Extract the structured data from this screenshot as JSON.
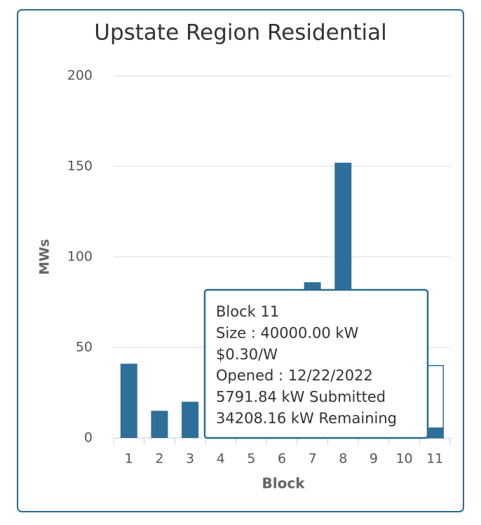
{
  "chart_data": {
    "type": "bar",
    "title": "Upstate Region Residential",
    "x_label": "Block",
    "y_label": "MWs",
    "categories": [
      "1",
      "2",
      "3",
      "4",
      "5",
      "6",
      "7",
      "8",
      "9",
      "10",
      "11"
    ],
    "series": [
      {
        "color": "#2e6f9a",
        "style": "outline",
        "values": [
          null,
          null,
          null,
          null,
          null,
          null,
          null,
          null,
          null,
          null,
          40
        ]
      },
      {
        "color": "#2e6f9a",
        "style": "filled",
        "values": [
          41,
          15,
          20,
          null,
          null,
          null,
          86,
          152,
          null,
          null,
          5.79184
        ]
      }
    ],
    "ylim": [
      0,
      200
    ],
    "yticks": [
      0,
      50,
      100,
      150,
      200
    ],
    "grid": true,
    "tooltip": {
      "lines": [
        "Block 11",
        "Size : 40000.00 kW",
        "$0.30/W",
        "Opened : 12/22/2022",
        "5791.84 kW Submitted",
        "34208.16 kW Remaining"
      ]
    }
  }
}
